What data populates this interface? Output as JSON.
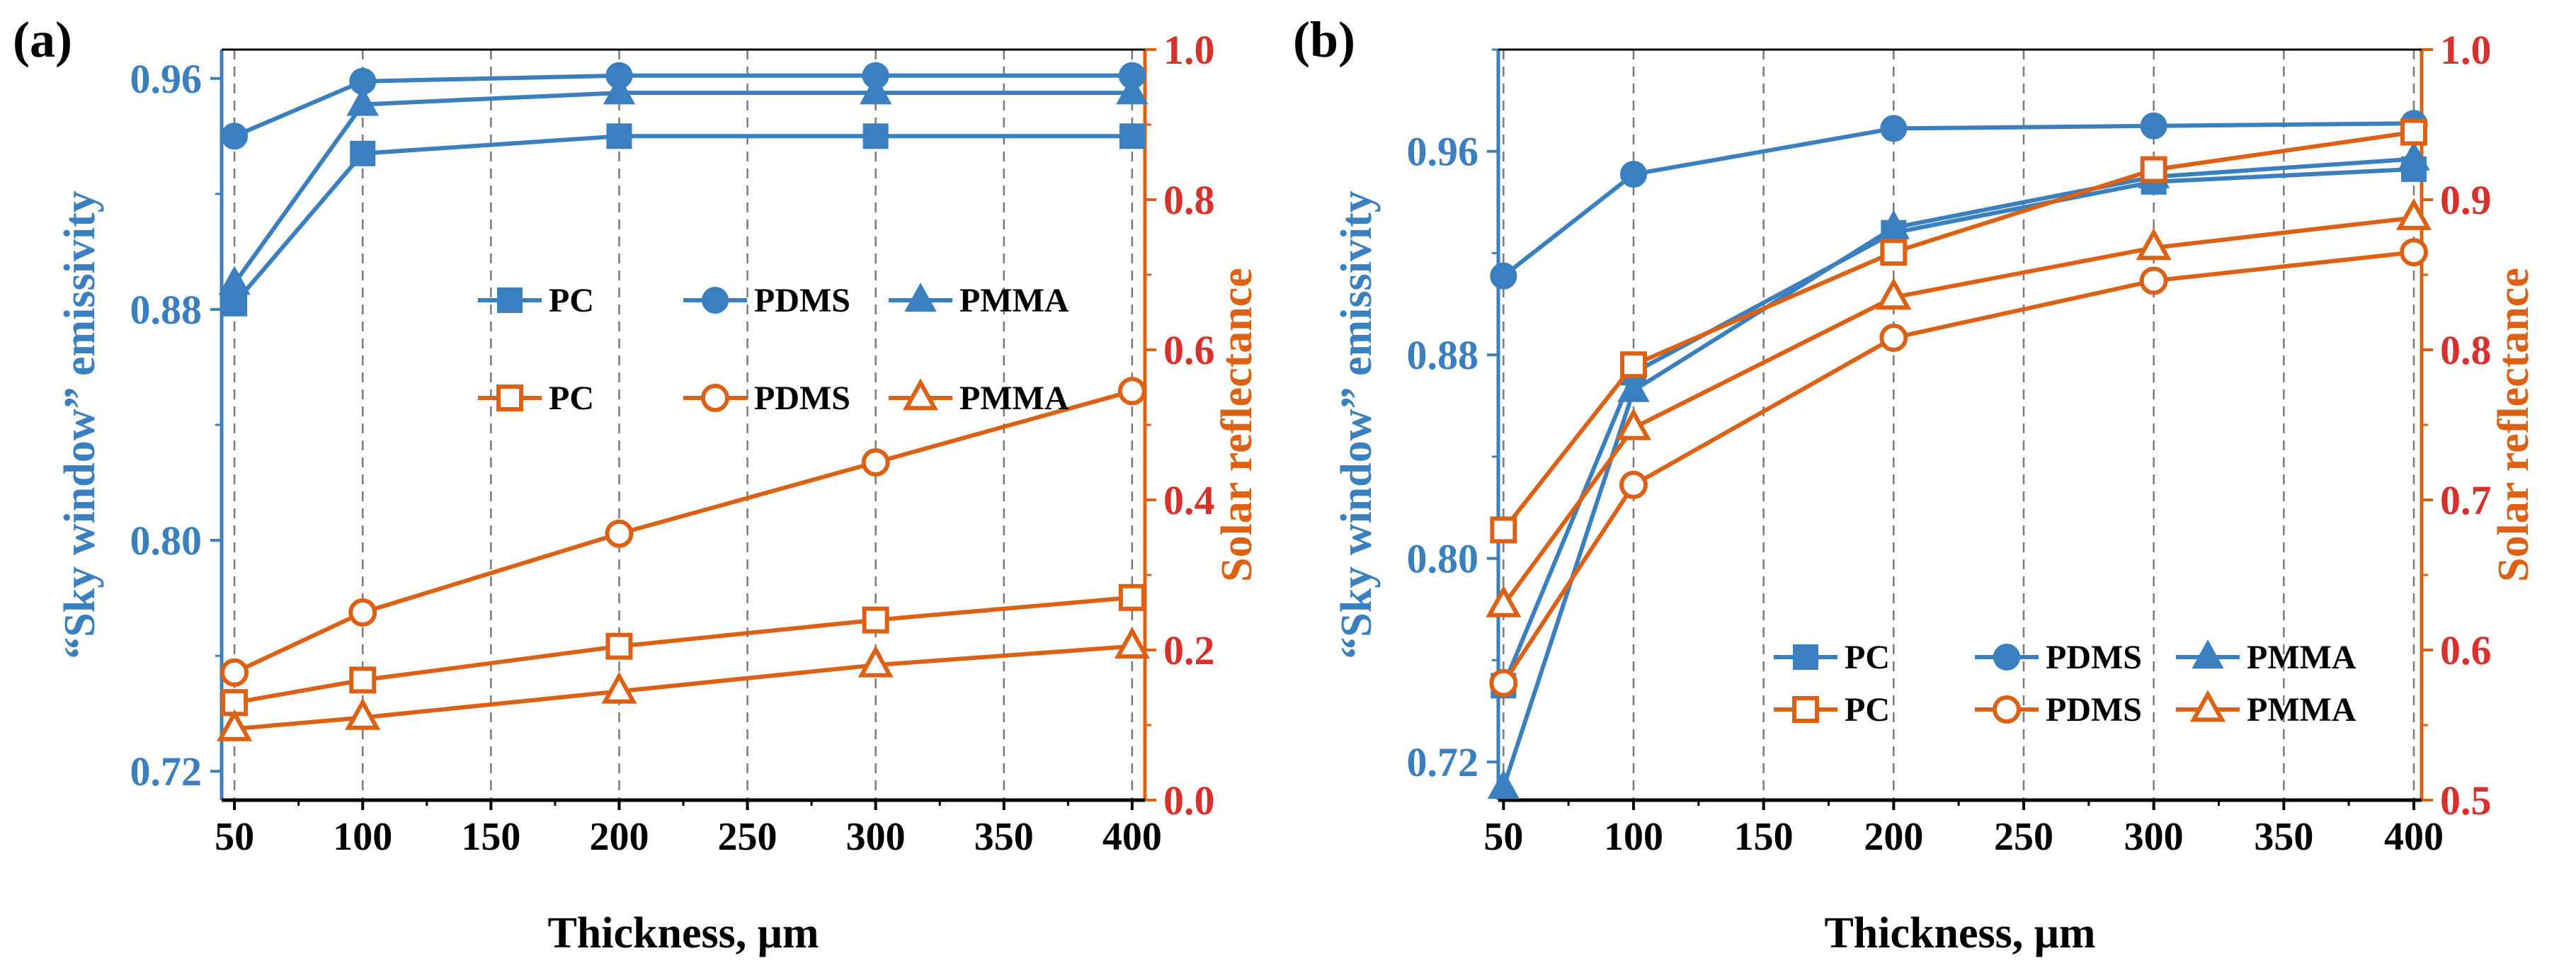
{
  "colors": {
    "blue": "#3a7fbf",
    "orange": "#dd6115",
    "red": "#d8302a",
    "grid": "#7a7a7a",
    "axis": "#000000"
  },
  "legend": {
    "row1": [
      "PC",
      "PDMS",
      "PMMA"
    ],
    "row2": [
      "PC",
      "PDMS",
      "PMMA"
    ]
  },
  "chart_data": [
    {
      "type": "line",
      "panel_label": "(a)",
      "xlabel": "Thickness, μm",
      "ylabel_left": "“Sky window” emissivity",
      "ylabel_right": "Solar reflectance",
      "x": [
        50,
        100,
        200,
        300,
        400
      ],
      "xlim": [
        45,
        405
      ],
      "xticks": [
        50,
        100,
        150,
        200,
        250,
        300,
        350,
        400
      ],
      "ylim_left": [
        0.71,
        0.97
      ],
      "yticks_left": [
        0.72,
        0.8,
        0.88,
        0.96
      ],
      "ylim_right": [
        0.0,
        1.0
      ],
      "yticks_right": [
        0.0,
        0.2,
        0.4,
        0.6,
        0.8,
        1.0
      ],
      "grid": "vertical dashed",
      "legend_position": "center-right",
      "series": [
        {
          "name": "PC",
          "axis": "left",
          "marker": "square-filled",
          "values": [
            0.882,
            0.934,
            0.94,
            0.94,
            0.94
          ]
        },
        {
          "name": "PDMS",
          "axis": "left",
          "marker": "circle-filled",
          "values": [
            0.94,
            0.959,
            0.961,
            0.961,
            0.961
          ]
        },
        {
          "name": "PMMA",
          "axis": "left",
          "marker": "triangle-filled",
          "values": [
            0.889,
            0.951,
            0.955,
            0.955,
            0.955
          ]
        },
        {
          "name": "PC",
          "axis": "right",
          "marker": "square-open",
          "values": [
            0.13,
            0.16,
            0.205,
            0.24,
            0.27
          ]
        },
        {
          "name": "PDMS",
          "axis": "right",
          "marker": "circle-open",
          "values": [
            0.17,
            0.25,
            0.355,
            0.45,
            0.545
          ]
        },
        {
          "name": "PMMA",
          "axis": "right",
          "marker": "triangle-open",
          "values": [
            0.095,
            0.11,
            0.145,
            0.18,
            0.205
          ]
        }
      ]
    },
    {
      "type": "line",
      "panel_label": "(b)",
      "xlabel": "Thickness, μm",
      "ylabel_left": "“Sky window” emissivity",
      "ylabel_right": "Solar reflectance",
      "x": [
        50,
        100,
        200,
        300,
        400
      ],
      "xlim": [
        48,
        403
      ],
      "xticks": [
        50,
        100,
        150,
        200,
        250,
        300,
        350,
        400
      ],
      "ylim_left": [
        0.705,
        1.0
      ],
      "yticks_left": [
        0.72,
        0.8,
        0.88,
        0.96
      ],
      "ylim_right": [
        0.5,
        1.0
      ],
      "yticks_right": [
        0.5,
        0.6,
        0.7,
        0.8,
        0.9,
        1.0
      ],
      "grid": "vertical dashed",
      "legend_position": "bottom-right",
      "series": [
        {
          "name": "PC",
          "axis": "left",
          "marker": "square-filled",
          "values": [
            0.75,
            0.873,
            0.928,
            0.948,
            0.953
          ]
        },
        {
          "name": "PDMS",
          "axis": "left",
          "marker": "circle-filled",
          "values": [
            0.911,
            0.951,
            0.969,
            0.97,
            0.971
          ]
        },
        {
          "name": "PMMA",
          "axis": "left",
          "marker": "triangle-filled",
          "values": [
            0.71,
            0.866,
            0.93,
            0.95,
            0.957
          ]
        },
        {
          "name": "PC",
          "axis": "right",
          "marker": "square-open",
          "values": [
            0.68,
            0.79,
            0.865,
            0.92,
            0.945
          ]
        },
        {
          "name": "PDMS",
          "axis": "right",
          "marker": "circle-open",
          "values": [
            0.578,
            0.71,
            0.808,
            0.846,
            0.865
          ]
        },
        {
          "name": "PMMA",
          "axis": "right",
          "marker": "triangle-open",
          "values": [
            0.63,
            0.748,
            0.835,
            0.868,
            0.888
          ]
        }
      ]
    }
  ]
}
